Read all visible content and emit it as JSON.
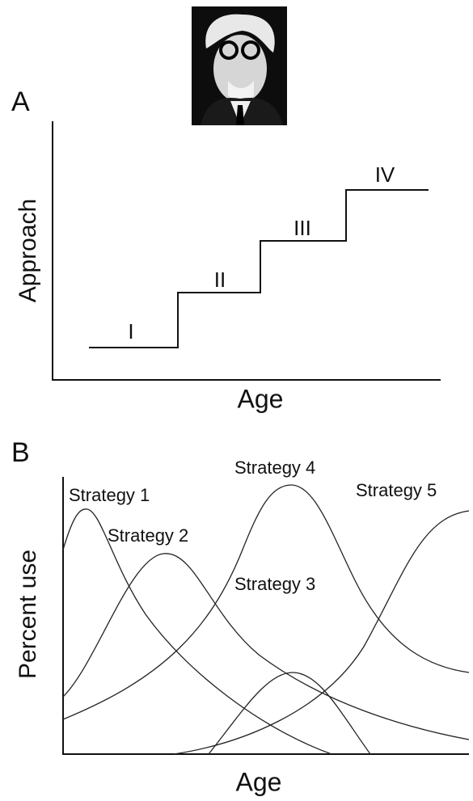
{
  "panel_a": {
    "label": "A",
    "y_axis": "Approach",
    "x_axis": "Age",
    "stages": [
      "I",
      "II",
      "III",
      "IV"
    ]
  },
  "panel_b": {
    "label": "B",
    "y_axis": "Percent use",
    "x_axis": "Age",
    "strategies": [
      "Strategy 1",
      "Strategy 2",
      "Strategy 3",
      "Strategy 4",
      "Strategy 5"
    ]
  }
}
